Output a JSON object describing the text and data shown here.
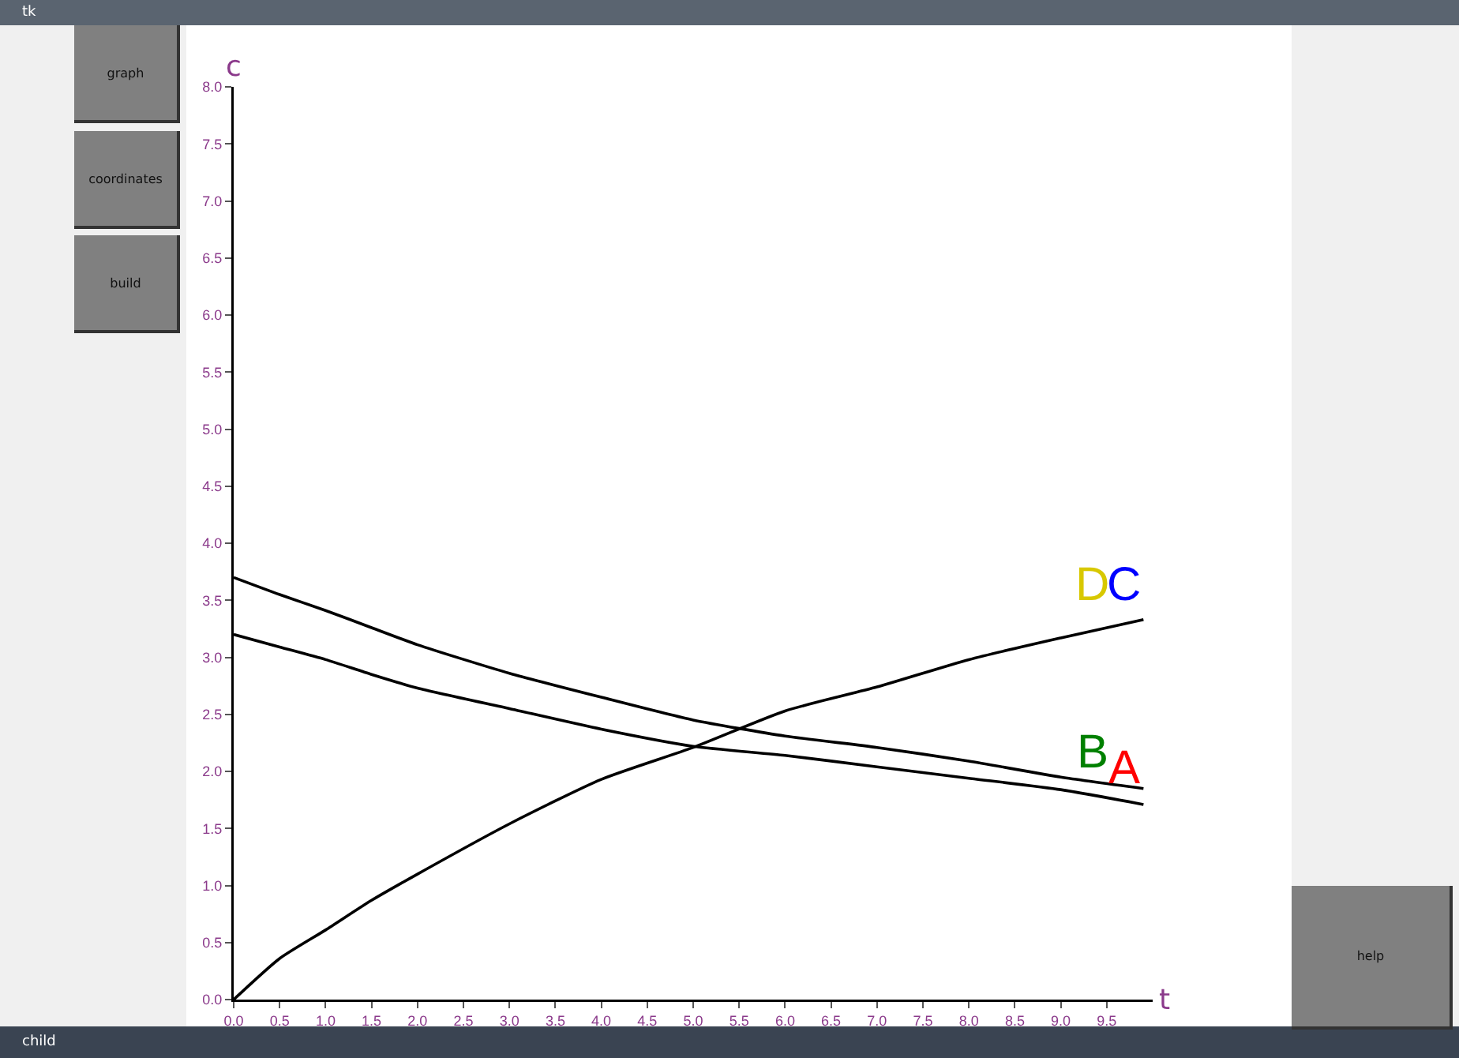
{
  "chart_data": {
    "type": "line",
    "xlabel": "t",
    "ylabel": "c",
    "x": [
      0,
      0.5,
      1,
      1.5,
      2,
      3,
      4,
      5,
      6,
      7,
      8,
      9,
      9.9
    ],
    "series": [
      {
        "color": "#000000",
        "values": [
          3.7,
          3.55,
          3.41,
          3.26,
          3.11,
          2.86,
          2.65,
          2.45,
          2.31,
          2.21,
          2.09,
          1.95,
          1.85
        ]
      },
      {
        "color": "#000000",
        "values": [
          3.2,
          3.09,
          2.98,
          2.85,
          2.73,
          2.55,
          2.37,
          2.22,
          2.14,
          2.04,
          1.94,
          1.84,
          1.71
        ]
      },
      {
        "color": "#000000",
        "values": [
          0,
          0.36,
          0.61,
          0.87,
          1.1,
          1.54,
          1.93,
          2.21,
          2.53,
          2.74,
          2.98,
          3.17,
          3.33
        ]
      }
    ],
    "xlim": [
      0,
      10
    ],
    "xticks": [
      {
        "value": 0,
        "label": "0.0"
      },
      {
        "value": 0.5,
        "label": "0.5"
      },
      {
        "value": 1,
        "label": "1.0"
      },
      {
        "value": 1.5,
        "label": "1.5"
      },
      {
        "value": 2,
        "label": "2.0"
      },
      {
        "value": 2.5,
        "label": "2.5"
      },
      {
        "value": 3,
        "label": "3.0"
      },
      {
        "value": 3.5,
        "label": "3.5"
      },
      {
        "value": 4,
        "label": "4.0"
      },
      {
        "value": 4.5,
        "label": "4.5"
      },
      {
        "value": 5,
        "label": "5.0"
      },
      {
        "value": 5.5,
        "label": "5.5"
      },
      {
        "value": 6,
        "label": "6.0"
      },
      {
        "value": 6.5,
        "label": "6.5"
      },
      {
        "value": 7,
        "label": "7.0"
      },
      {
        "value": 7.5,
        "label": "7.5"
      },
      {
        "value": 8,
        "label": "8.0"
      },
      {
        "value": 8.5,
        "label": "8.5"
      },
      {
        "value": 9,
        "label": "9.0"
      },
      {
        "value": 9.5,
        "label": "9.5"
      }
    ],
    "ylim": [
      0,
      8
    ],
    "yticks": [
      {
        "value": 0,
        "label": "0.0"
      },
      {
        "value": 0.5,
        "label": "0.5"
      },
      {
        "value": 1,
        "label": "1.0"
      },
      {
        "value": 1.5,
        "label": "1.5"
      },
      {
        "value": 2,
        "label": "2.0"
      },
      {
        "value": 2.5,
        "label": "2.5"
      },
      {
        "value": 3,
        "label": "3.0"
      },
      {
        "value": 3.5,
        "label": "3.5"
      },
      {
        "value": 4,
        "label": "4.0"
      },
      {
        "value": 4.5,
        "label": "4.5"
      },
      {
        "value": 5,
        "label": "5.0"
      },
      {
        "value": 5.5,
        "label": "5.5"
      },
      {
        "value": 6,
        "label": "6.0"
      },
      {
        "value": 6.5,
        "label": "6.5"
      },
      {
        "value": 7,
        "label": "7.0"
      },
      {
        "value": 7.5,
        "label": "7.5"
      },
      {
        "value": 8,
        "label": "8.0"
      }
    ],
    "grid": false,
    "marker": "none",
    "line_style": "solid",
    "annotations": [
      "D",
      "C",
      "B",
      "A",
      "graph",
      "coordinates",
      "build",
      "help",
      "tk",
      "child"
    ]
  }
}
